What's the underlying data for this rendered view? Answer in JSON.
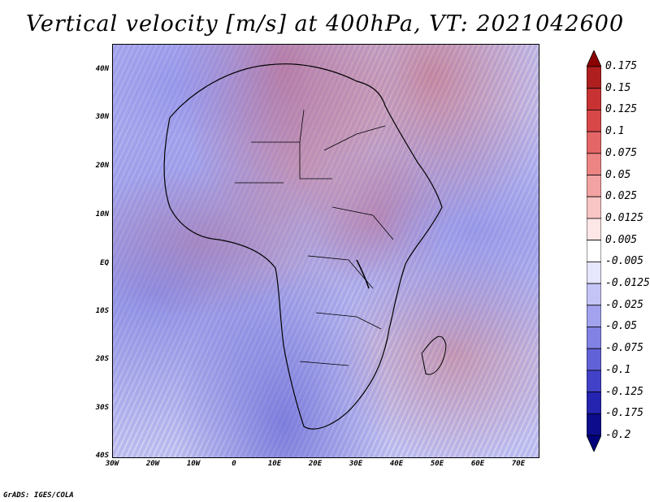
{
  "title": "Vertical velocity [m/s] at 400hPa, VT: 2021042600",
  "footer": "GrADS: IGES/COLA",
  "lat_labels": [
    "40N",
    "30N",
    "20N",
    "10N",
    "EQ",
    "10S",
    "20S",
    "30S",
    "40S"
  ],
  "lon_labels": [
    "30W",
    "20W",
    "10W",
    "0",
    "10E",
    "20E",
    "30E",
    "40E",
    "50E",
    "60E",
    "70E"
  ],
  "colorbar": {
    "labels": [
      "0.175",
      "0.15",
      "0.125",
      "0.1",
      "0.075",
      "0.05",
      "0.025",
      "0.0125",
      "0.005",
      "-0.005",
      "-0.0125",
      "-0.025",
      "-0.05",
      "-0.075",
      "-0.1",
      "-0.125",
      "-0.175",
      "-0.2"
    ],
    "colors": [
      "#8b0000",
      "#b01f1f",
      "#c83232",
      "#d84848",
      "#e46666",
      "#ec8484",
      "#f2a2a2",
      "#f8c4c4",
      "#fce6e6",
      "#ffffff",
      "#e6e6fc",
      "#c4c4f6",
      "#a2a2ee",
      "#8282e4",
      "#6262d8",
      "#4242c8",
      "#2424b0",
      "#0c0c8c",
      "#00007a"
    ]
  }
}
